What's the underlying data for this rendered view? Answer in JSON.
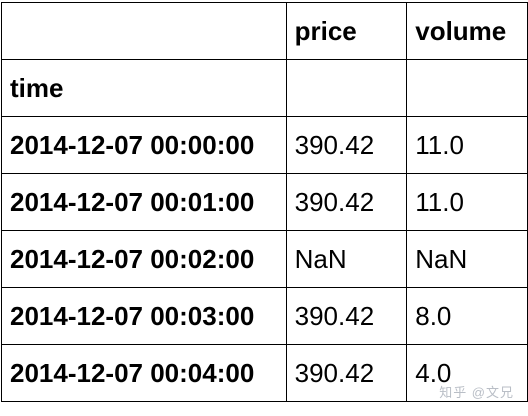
{
  "table": {
    "columns": [
      "price",
      "volume"
    ],
    "index_name": "time",
    "rows": [
      {
        "time": "2014-12-07 00:00:00",
        "price": "390.42",
        "volume": "11.0"
      },
      {
        "time": "2014-12-07 00:01:00",
        "price": "390.42",
        "volume": "11.0"
      },
      {
        "time": "2014-12-07 00:02:00",
        "price": "NaN",
        "volume": "NaN"
      },
      {
        "time": "2014-12-07 00:03:00",
        "price": "390.42",
        "volume": "8.0"
      },
      {
        "time": "2014-12-07 00:04:00",
        "price": "390.42",
        "volume": "4.0"
      }
    ]
  },
  "watermark": "知乎 @文兄"
}
